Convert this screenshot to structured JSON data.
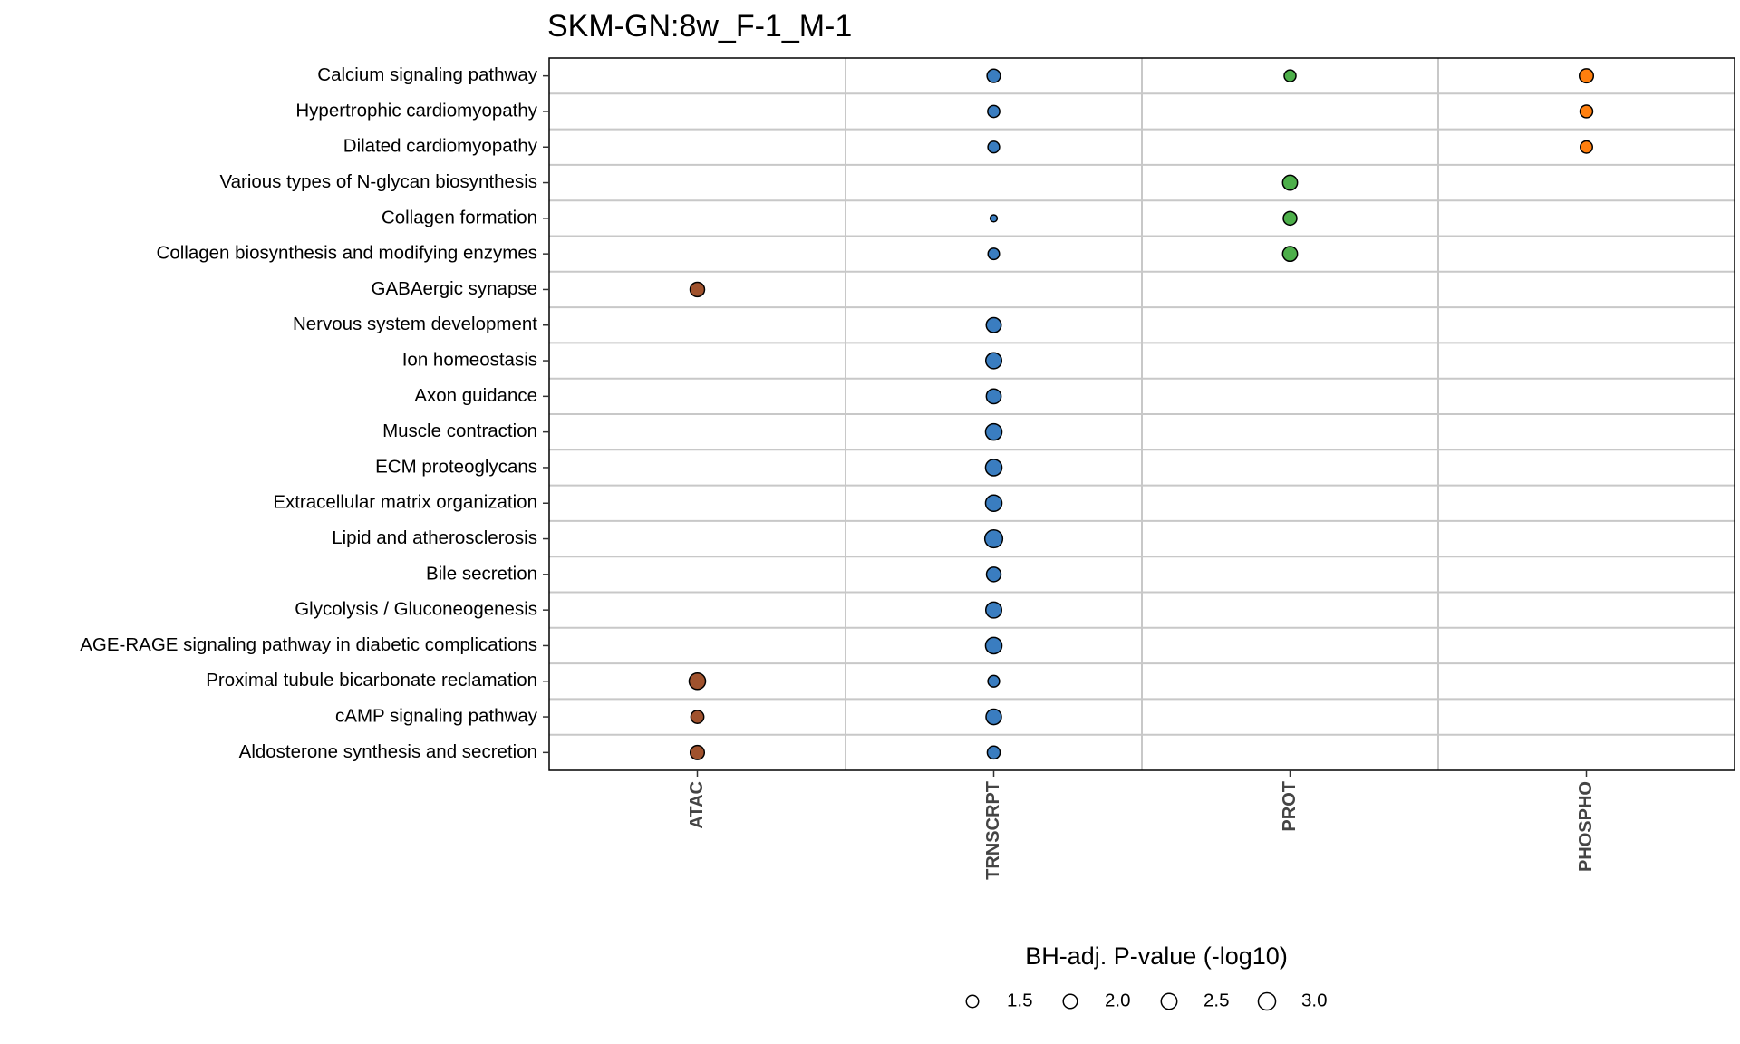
{
  "chart_data": {
    "type": "scatter",
    "title": "SKM-GN:8w_F-1_M-1",
    "x_categories": [
      "ATAC",
      "TRNSCRPT",
      "PROT",
      "PHOSPHO"
    ],
    "y_categories": [
      "Calcium signaling pathway",
      "Hypertrophic cardiomyopathy",
      "Dilated cardiomyopathy",
      "Various types of N-glycan biosynthesis",
      "Collagen formation",
      "Collagen biosynthesis and modifying enzymes",
      "GABAergic synapse",
      "Nervous system development",
      "Ion homeostasis",
      "Axon guidance",
      "Muscle contraction",
      "ECM proteoglycans",
      "Extracellular matrix organization",
      "Lipid and atherosclerosis",
      "Bile secretion",
      "Glycolysis / Gluconeogenesis",
      "AGE-RAGE signaling pathway in diabetic complications",
      "Proximal tubule bicarbonate reclamation",
      "cAMP signaling pathway",
      "Aldosterone synthesis and secretion"
    ],
    "colors": {
      "ATAC": "#A0522D",
      "TRNSCRPT": "#3A7DC0",
      "PROT": "#4DAF4A",
      "PHOSPHO": "#FF7F0E"
    },
    "points": [
      {
        "pathway": "Calcium signaling pathway",
        "ome": "TRNSCRPT",
        "value": 1.8
      },
      {
        "pathway": "Calcium signaling pathway",
        "ome": "PROT",
        "value": 1.4
      },
      {
        "pathway": "Calcium signaling pathway",
        "ome": "PHOSPHO",
        "value": 2.0
      },
      {
        "pathway": "Hypertrophic cardiomyopathy",
        "ome": "TRNSCRPT",
        "value": 1.45
      },
      {
        "pathway": "Hypertrophic cardiomyopathy",
        "ome": "PHOSPHO",
        "value": 1.6
      },
      {
        "pathway": "Dilated cardiomyopathy",
        "ome": "TRNSCRPT",
        "value": 1.35
      },
      {
        "pathway": "Dilated cardiomyopathy",
        "ome": "PHOSPHO",
        "value": 1.5
      },
      {
        "pathway": "Various types of N-glycan biosynthesis",
        "ome": "PROT",
        "value": 2.2
      },
      {
        "pathway": "Collagen formation",
        "ome": "TRNSCRPT",
        "value": 0.5
      },
      {
        "pathway": "Collagen formation",
        "ome": "PROT",
        "value": 1.85
      },
      {
        "pathway": "Collagen biosynthesis and modifying enzymes",
        "ome": "TRNSCRPT",
        "value": 1.3
      },
      {
        "pathway": "Collagen biosynthesis and modifying enzymes",
        "ome": "PROT",
        "value": 2.2
      },
      {
        "pathway": "GABAergic synapse",
        "ome": "ATAC",
        "value": 2.1
      },
      {
        "pathway": "Nervous system development",
        "ome": "TRNSCRPT",
        "value": 2.25
      },
      {
        "pathway": "Ion homeostasis",
        "ome": "TRNSCRPT",
        "value": 2.55
      },
      {
        "pathway": "Axon guidance",
        "ome": "TRNSCRPT",
        "value": 2.2
      },
      {
        "pathway": "Muscle contraction",
        "ome": "TRNSCRPT",
        "value": 2.7
      },
      {
        "pathway": "ECM proteoglycans",
        "ome": "TRNSCRPT",
        "value": 2.7
      },
      {
        "pathway": "Extracellular matrix organization",
        "ome": "TRNSCRPT",
        "value": 2.7
      },
      {
        "pathway": "Lipid and atherosclerosis",
        "ome": "TRNSCRPT",
        "value": 3.2
      },
      {
        "pathway": "Bile secretion",
        "ome": "TRNSCRPT",
        "value": 2.1
      },
      {
        "pathway": "Glycolysis / Gluconeogenesis",
        "ome": "TRNSCRPT",
        "value": 2.55
      },
      {
        "pathway": "AGE-RAGE signaling pathway in diabetic complications",
        "ome": "TRNSCRPT",
        "value": 2.7
      },
      {
        "pathway": "Proximal tubule bicarbonate reclamation",
        "ome": "ATAC",
        "value": 2.7
      },
      {
        "pathway": "Proximal tubule bicarbonate reclamation",
        "ome": "TRNSCRPT",
        "value": 1.35
      },
      {
        "pathway": "cAMP signaling pathway",
        "ome": "ATAC",
        "value": 1.7
      },
      {
        "pathway": "cAMP signaling pathway",
        "ome": "TRNSCRPT",
        "value": 2.4
      },
      {
        "pathway": "Aldosterone synthesis and secretion",
        "ome": "ATAC",
        "value": 2.0
      },
      {
        "pathway": "Aldosterone synthesis and secretion",
        "ome": "TRNSCRPT",
        "value": 1.65
      }
    ],
    "size_legend": {
      "title": "BH-adj. P-value (-log10)",
      "values": [
        1.5,
        2.0,
        2.5,
        3.0
      ],
      "labels": [
        "1.5",
        "2.0",
        "2.5",
        "3.0"
      ]
    },
    "grid": true,
    "legend_position": "bottom"
  }
}
